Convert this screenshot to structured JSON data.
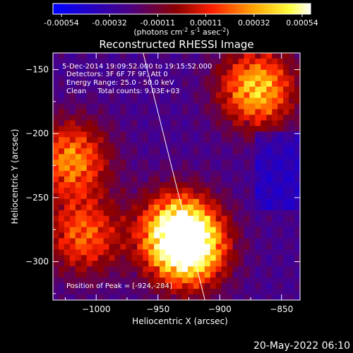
{
  "colorbar": {
    "tick_labels": [
      "-0.00054",
      "-0.00032",
      "-0.00011",
      "0.00011",
      "0.00032",
      "0.00054"
    ],
    "unit_label": "(photons cm",
    "unit_sup1": "-2",
    "unit_mid1": " s",
    "unit_sup2": "-1",
    "unit_mid2": " asec",
    "unit_sup3": "-2",
    "unit_end": ")",
    "colors": [
      "#0000ff",
      "#4b0082",
      "#8b0000",
      "#ff0000",
      "#ffa500",
      "#ffff00",
      "#ffffff"
    ]
  },
  "title": "Reconstructed RHESSI Image",
  "annotations": {
    "time": "5-Dec-2014 19:09:52.000 to 19:15:52.000",
    "detectors": "Detectors: 3F 6F 7F 9F, Att 0",
    "energy": "Energy Range: 25.0 - 50.0 keV",
    "clean": "Clean     Total counts: 9.03E+03",
    "peak": "Position of Peak = [-924,-284]"
  },
  "footer_date": "20-May-2022 06:10",
  "chart_data": {
    "type": "heatmap",
    "title": "Reconstructed RHESSI Image",
    "xlabel": "Heliocentric X (arcsec)",
    "ylabel": "Heliocentric Y (arcsec)",
    "xlim": [
      -1035,
      -835
    ],
    "ylim": [
      -330,
      -137
    ],
    "x_ticks": [
      -1000,
      -950,
      -900,
      -850
    ],
    "y_ticks": [
      -300,
      -250,
      -200,
      -150
    ],
    "x_tick_labels": [
      "−1000",
      "−950",
      "−900",
      "−850"
    ],
    "y_tick_labels": [
      "−300",
      "−250",
      "−200",
      "−150"
    ],
    "colorbar_range": [
      -0.00054,
      0.00054
    ],
    "peak_position": [
      -924,
      -284
    ],
    "limb_line": [
      [
        -962,
        -137
      ],
      [
        -912,
        -330
      ]
    ],
    "bright_regions": [
      {
        "x": -925,
        "y": -290,
        "level": 1.0
      },
      {
        "x": -935,
        "y": -275,
        "level": 0.8
      },
      {
        "x": -870,
        "y": -165,
        "level": 0.85
      },
      {
        "x": -1020,
        "y": -220,
        "level": 0.7
      },
      {
        "x": -1010,
        "y": -280,
        "level": 0.6
      }
    ]
  }
}
